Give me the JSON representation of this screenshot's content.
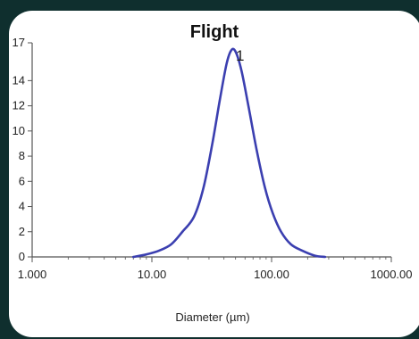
{
  "colors": {
    "background": "#0f2f2e",
    "card": "#ffffff",
    "series": "#3b3fb0",
    "axis": "#555555"
  },
  "chart_data": {
    "type": "line",
    "title": "Flight",
    "xlabel": "Diameter (µm)",
    "ylabel": "",
    "x_scale": "log",
    "xlim": [
      1.0,
      1000.0
    ],
    "ylim": [
      0,
      17
    ],
    "x_ticks": [
      1.0,
      10.0,
      100.0,
      1000.0
    ],
    "x_tick_labels": [
      "1.000",
      "10.00",
      "100.00",
      "1000.00"
    ],
    "y_ticks": [
      0,
      2,
      4,
      6,
      8,
      10,
      12,
      14,
      17
    ],
    "y_tick_labels": [
      "0",
      "2",
      "4",
      "6",
      "8",
      "10",
      "12",
      "14",
      "17"
    ],
    "grid": false,
    "annotations": [
      {
        "text": "1",
        "x": 50,
        "y": 16.8
      }
    ],
    "series": [
      {
        "color": "#3b3fb0",
        "x": [
          7.0,
          9.0,
          11.5,
          14.5,
          18.0,
          22.5,
          27.0,
          32.0,
          37.0,
          42.0,
          46.0,
          50.0,
          56.0,
          64.0,
          75.0,
          88.0,
          102.0,
          120.0,
          145.0,
          180.0,
          230.0,
          280.0
        ],
        "y": [
          0.0,
          0.2,
          0.5,
          1.0,
          2.0,
          3.2,
          5.5,
          9.0,
          12.5,
          15.3,
          16.4,
          16.3,
          14.8,
          12.0,
          8.5,
          5.5,
          3.5,
          2.0,
          1.0,
          0.5,
          0.1,
          0.0
        ]
      }
    ]
  }
}
